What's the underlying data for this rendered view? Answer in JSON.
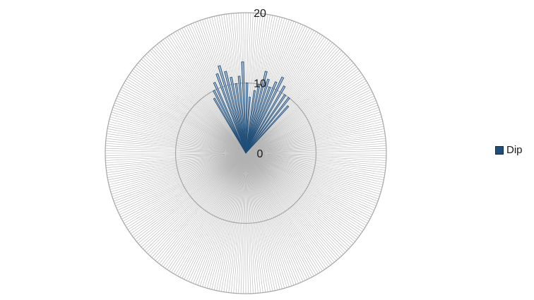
{
  "chart_data": {
    "type": "radar",
    "radial_axis": {
      "min": 0,
      "max": 20,
      "ticks": [
        0,
        10,
        20
      ]
    },
    "spokes": 360,
    "grid": true,
    "legend_position": "right",
    "series": [
      {
        "name": "Dip",
        "color": "#1f4e79",
        "fill": "#8eaed1",
        "points": [
          {
            "angle": 330,
            "value": 9
          },
          {
            "angle": 333,
            "value": 10
          },
          {
            "angle": 336,
            "value": 11
          },
          {
            "angle": 340,
            "value": 12
          },
          {
            "angle": 343,
            "value": 13
          },
          {
            "angle": 346,
            "value": 12
          },
          {
            "angle": 349,
            "value": 11
          },
          {
            "angle": 352,
            "value": 10
          },
          {
            "angle": 355,
            "value": 11
          },
          {
            "angle": 358,
            "value": 13
          },
          {
            "angle": 1,
            "value": 10
          },
          {
            "angle": 4,
            "value": 8
          },
          {
            "angle": 8,
            "value": 9
          },
          {
            "angle": 11,
            "value": 10
          },
          {
            "angle": 14,
            "value": 12
          },
          {
            "angle": 17,
            "value": 11
          },
          {
            "angle": 20,
            "value": 10
          },
          {
            "angle": 23,
            "value": 11
          },
          {
            "angle": 26,
            "value": 12
          },
          {
            "angle": 30,
            "value": 11
          },
          {
            "angle": 34,
            "value": 10
          },
          {
            "angle": 38,
            "value": 10
          },
          {
            "angle": 42,
            "value": 9
          }
        ]
      }
    ]
  }
}
